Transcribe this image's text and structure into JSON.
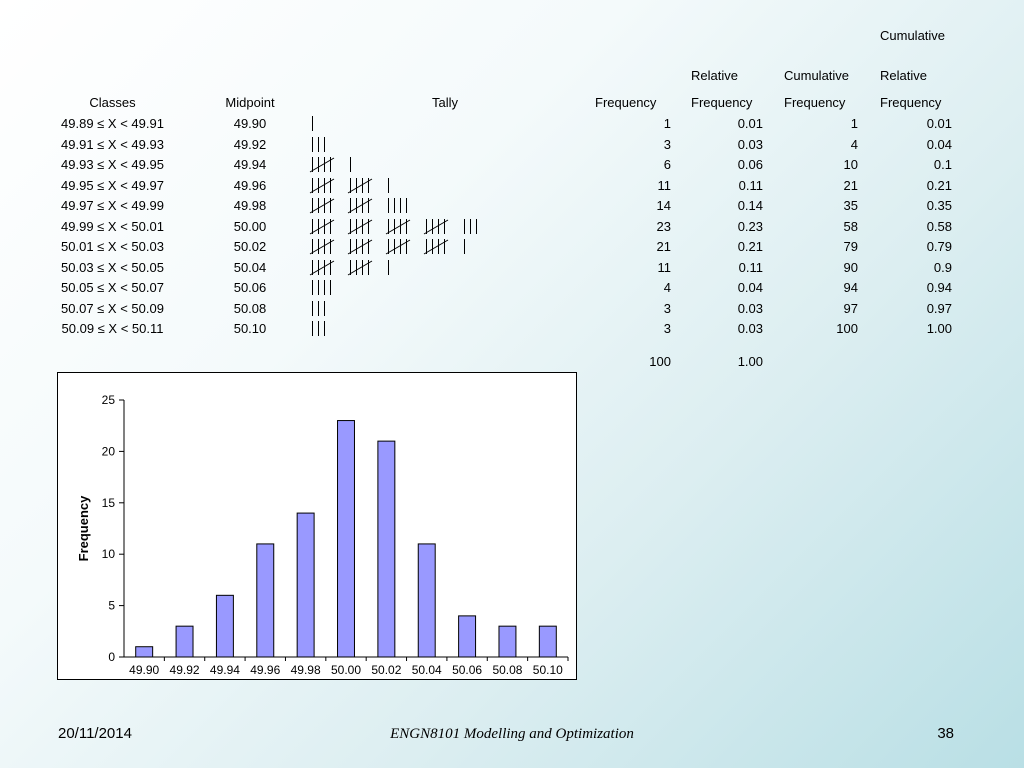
{
  "table": {
    "header_top": {
      "cumulative": "Cumulative"
    },
    "header_mid": {
      "relative": "Relative",
      "cumulative": "Cumulative",
      "relative2": "Relative"
    },
    "header": {
      "classes": "Classes",
      "midpoint": "Midpoint",
      "tally": "Tally",
      "frequency": "Frequency",
      "rel_frequency": "Frequency",
      "cum_frequency": "Frequency",
      "cum_rel_frequency": "Frequency"
    },
    "rows": [
      {
        "cls": "49.89 ≤ X < 49.91",
        "mid": "49.90",
        "freq": "1",
        "rel": "0.01",
        "cum": "1",
        "crel": "0.01",
        "tally": 1
      },
      {
        "cls": "49.91 ≤ X < 49.93",
        "mid": "49.92",
        "freq": "3",
        "rel": "0.03",
        "cum": "4",
        "crel": "0.04",
        "tally": 3
      },
      {
        "cls": "49.93 ≤ X < 49.95",
        "mid": "49.94",
        "freq": "6",
        "rel": "0.06",
        "cum": "10",
        "crel": "0.1",
        "tally": 6
      },
      {
        "cls": "49.95 ≤ X < 49.97",
        "mid": "49.96",
        "freq": "11",
        "rel": "0.11",
        "cum": "21",
        "crel": "0.21",
        "tally": 11
      },
      {
        "cls": "49.97 ≤ X < 49.99",
        "mid": "49.98",
        "freq": "14",
        "rel": "0.14",
        "cum": "35",
        "crel": "0.35",
        "tally": 14
      },
      {
        "cls": "49.99 ≤ X < 50.01",
        "mid": "50.00",
        "freq": "23",
        "rel": "0.23",
        "cum": "58",
        "crel": "0.58",
        "tally": 23
      },
      {
        "cls": "50.01 ≤ X < 50.03",
        "mid": "50.02",
        "freq": "21",
        "rel": "0.21",
        "cum": "79",
        "crel": "0.79",
        "tally": 21
      },
      {
        "cls": "50.03 ≤ X < 50.05",
        "mid": "50.04",
        "freq": "11",
        "rel": "0.11",
        "cum": "90",
        "crel": "0.9",
        "tally": 11
      },
      {
        "cls": "50.05 ≤ X < 50.07",
        "mid": "50.06",
        "freq": "4",
        "rel": "0.04",
        "cum": "94",
        "crel": "0.94",
        "tally": 4
      },
      {
        "cls": "50.07 ≤ X < 50.09",
        "mid": "50.08",
        "freq": "3",
        "rel": "0.03",
        "cum": "97",
        "crel": "0.97",
        "tally": 3
      },
      {
        "cls": "50.09 ≤ X < 50.11",
        "mid": "50.10",
        "freq": "3",
        "rel": "0.03",
        "cum": "100",
        "crel": "1.00",
        "tally": 3
      }
    ],
    "totals": {
      "freq": "100",
      "rel": "1.00"
    }
  },
  "chart_data": {
    "type": "bar",
    "categories": [
      "49.90",
      "49.92",
      "49.94",
      "49.96",
      "49.98",
      "50.00",
      "50.02",
      "50.04",
      "50.06",
      "50.08",
      "50.10"
    ],
    "values": [
      1,
      3,
      6,
      11,
      14,
      23,
      21,
      11,
      4,
      3,
      3
    ],
    "ylabel": "Frequency",
    "xlabel": "",
    "ylim": [
      0,
      25
    ],
    "yticks": [
      0,
      5,
      10,
      15,
      20,
      25
    ],
    "grid": false,
    "bar_color": "#9999ff"
  },
  "footer": {
    "date": "20/11/2014",
    "title": "ENGN8101 Modelling and Optimization",
    "page": "38"
  }
}
